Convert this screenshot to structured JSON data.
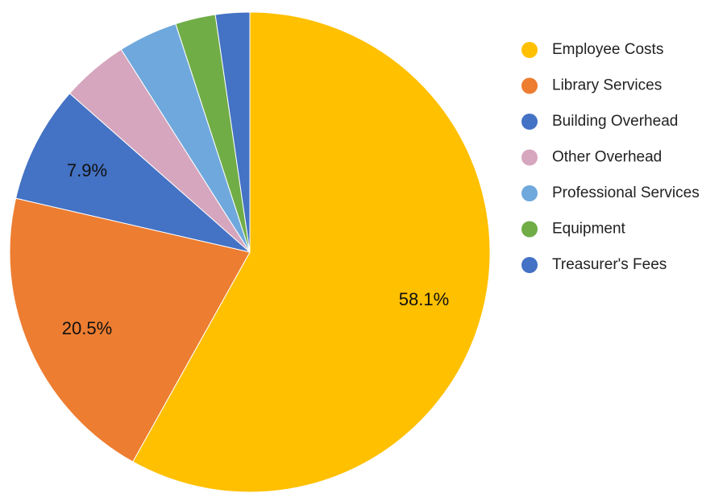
{
  "chart_data": {
    "type": "pie",
    "title": "",
    "slices": [
      {
        "name": "Employee Costs",
        "value": 58.1,
        "color": "#FFC000",
        "label": "58.1%"
      },
      {
        "name": "Library Services",
        "value": 20.5,
        "color": "#ED7D31",
        "label": "20.5%"
      },
      {
        "name": "Building Overhead",
        "value": 7.9,
        "color": "#4472C4",
        "label": "7.9%"
      },
      {
        "name": "Other Overhead",
        "value": 4.5,
        "color": "#D5A6BD",
        "label": ""
      },
      {
        "name": "Professional Services",
        "value": 4.0,
        "color": "#6FA8DC",
        "label": ""
      },
      {
        "name": "Equipment",
        "value": 2.7,
        "color": "#70AD47",
        "label": ""
      },
      {
        "name": "Treasurer's Fees",
        "value": 2.3,
        "color": "#4472C4",
        "label": ""
      }
    ],
    "legend": {
      "placement": "right",
      "entries": [
        "Employee Costs",
        "Library Services",
        "Building Overhead",
        "Other Overhead",
        "Professional Services",
        "Equipment",
        "Treasurer's Fees"
      ]
    }
  }
}
